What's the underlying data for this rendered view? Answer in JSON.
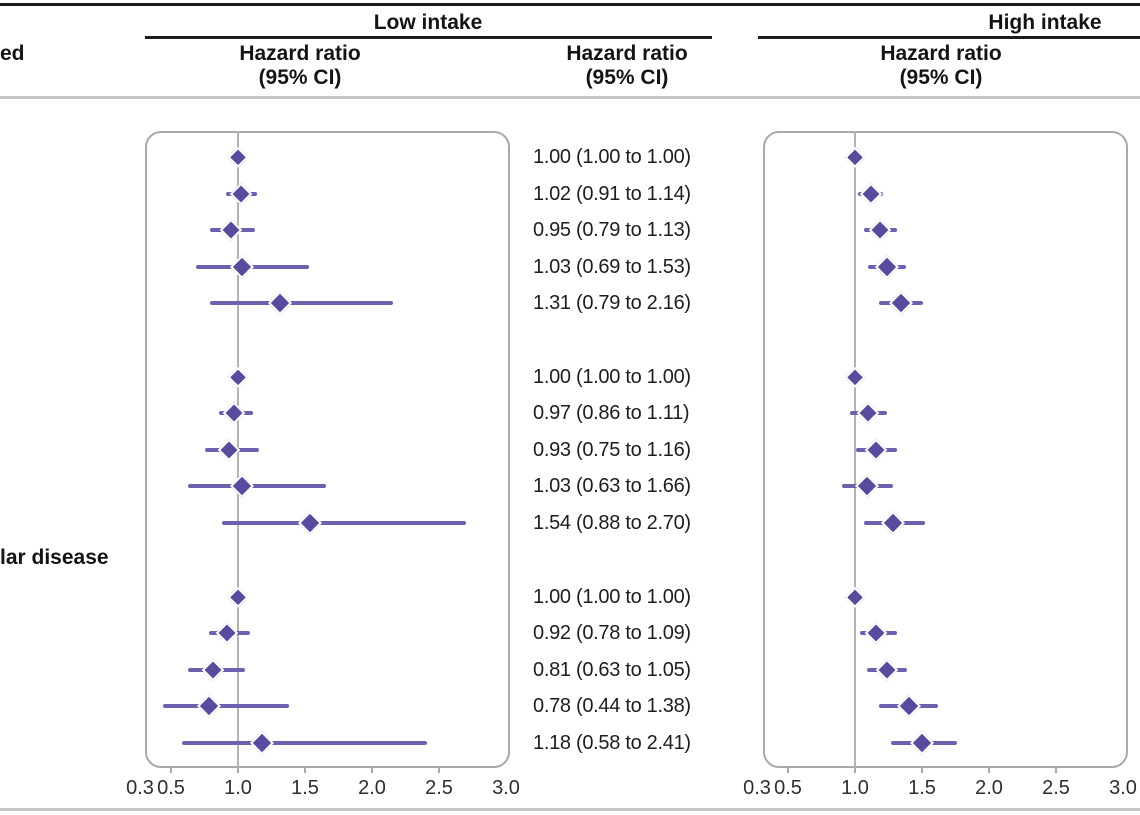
{
  "header": {
    "col_low": "Low intake",
    "col_high": "High intake",
    "hr_line1": "Hazard ratio",
    "hr_line2": "(95% CI)",
    "left_label_fragment": "ed"
  },
  "row_label_fragments": {
    "group3": "lar disease"
  },
  "colors": {
    "diamond": "#584a9c",
    "ci_line": "#6c61ae",
    "ref_line": "#b4b2b5",
    "panel_border": "#a9a9a9",
    "rule_dark": "#1c1c1c",
    "rule_gray": "#c7c5c6",
    "text": "#1d1d1d"
  },
  "axis": {
    "tick_labels": [
      "0.3",
      "0.5",
      "1.0",
      "1.5",
      "2.0",
      "2.5",
      "3.0"
    ],
    "tick_values": [
      0.3,
      0.5,
      1.0,
      1.5,
      2.0,
      2.5,
      3.0
    ],
    "marked_tick_values": [
      0.5,
      1.0,
      1.5,
      2.0,
      2.5
    ]
  },
  "chart_data": [
    {
      "type": "scatter",
      "variant": "forest-plot",
      "panel": "Low intake",
      "ylabel": "",
      "xlabel": "",
      "ref_line": 1.0,
      "xlim": [
        0.3,
        3.0
      ],
      "legend": "none",
      "groups": [
        {
          "rows": [
            {
              "hr": 1.0,
              "lo": 1.0,
              "hi": 1.0,
              "label": "1.00 (1.00 to 1.00)"
            },
            {
              "hr": 1.02,
              "lo": 0.91,
              "hi": 1.14,
              "label": "1.02 (0.91 to 1.14)"
            },
            {
              "hr": 0.95,
              "lo": 0.79,
              "hi": 1.13,
              "label": "0.95 (0.79 to 1.13)"
            },
            {
              "hr": 1.03,
              "lo": 0.69,
              "hi": 1.53,
              "label": "1.03 (0.69 to 1.53)"
            },
            {
              "hr": 1.31,
              "lo": 0.79,
              "hi": 2.16,
              "label": "1.31 (0.79 to 2.16)"
            }
          ]
        },
        {
          "rows": [
            {
              "hr": 1.0,
              "lo": 1.0,
              "hi": 1.0,
              "label": "1.00 (1.00 to 1.00)"
            },
            {
              "hr": 0.97,
              "lo": 0.86,
              "hi": 1.11,
              "label": "0.97 (0.86 to 1.11)"
            },
            {
              "hr": 0.93,
              "lo": 0.75,
              "hi": 1.16,
              "label": "0.93 (0.75 to 1.16)"
            },
            {
              "hr": 1.03,
              "lo": 0.63,
              "hi": 1.66,
              "label": "1.03 (0.63 to 1.66)"
            },
            {
              "hr": 1.54,
              "lo": 0.88,
              "hi": 2.7,
              "label": "1.54 (0.88 to 2.70)"
            }
          ]
        },
        {
          "rows": [
            {
              "hr": 1.0,
              "lo": 1.0,
              "hi": 1.0,
              "label": "1.00 (1.00 to 1.00)"
            },
            {
              "hr": 0.92,
              "lo": 0.78,
              "hi": 1.09,
              "label": "0.92 (0.78 to 1.09)"
            },
            {
              "hr": 0.81,
              "lo": 0.63,
              "hi": 1.05,
              "label": "0.81 (0.63 to 1.05)"
            },
            {
              "hr": 0.78,
              "lo": 0.44,
              "hi": 1.38,
              "label": "0.78 (0.44 to 1.38)"
            },
            {
              "hr": 1.18,
              "lo": 0.58,
              "hi": 2.41,
              "label": "1.18 (0.58 to 2.41)"
            }
          ]
        }
      ]
    },
    {
      "type": "scatter",
      "variant": "forest-plot",
      "panel": "High intake",
      "ylabel": "",
      "xlabel": "",
      "ref_line": 1.0,
      "xlim": [
        0.3,
        3.0
      ],
      "legend": "none",
      "groups": [
        {
          "rows": [
            {
              "hr": 1.0,
              "lo": 1.0,
              "hi": 1.0
            },
            {
              "hr": 1.12,
              "lo": 1.02,
              "hi": 1.21
            },
            {
              "hr": 1.19,
              "lo": 1.07,
              "hi": 1.31
            },
            {
              "hr": 1.24,
              "lo": 1.1,
              "hi": 1.38
            },
            {
              "hr": 1.34,
              "lo": 1.18,
              "hi": 1.51
            }
          ]
        },
        {
          "rows": [
            {
              "hr": 1.0,
              "lo": 1.0,
              "hi": 1.0
            },
            {
              "hr": 1.1,
              "lo": 0.96,
              "hi": 1.24
            },
            {
              "hr": 1.16,
              "lo": 1.01,
              "hi": 1.31
            },
            {
              "hr": 1.09,
              "lo": 0.9,
              "hi": 1.28
            },
            {
              "hr": 1.28,
              "lo": 1.07,
              "hi": 1.52
            }
          ]
        },
        {
          "rows": [
            {
              "hr": 1.0,
              "lo": 1.0,
              "hi": 1.0
            },
            {
              "hr": 1.16,
              "lo": 1.04,
              "hi": 1.31
            },
            {
              "hr": 1.24,
              "lo": 1.09,
              "hi": 1.39
            },
            {
              "hr": 1.4,
              "lo": 1.18,
              "hi": 1.62
            },
            {
              "hr": 1.5,
              "lo": 1.27,
              "hi": 1.76
            }
          ]
        }
      ]
    }
  ]
}
